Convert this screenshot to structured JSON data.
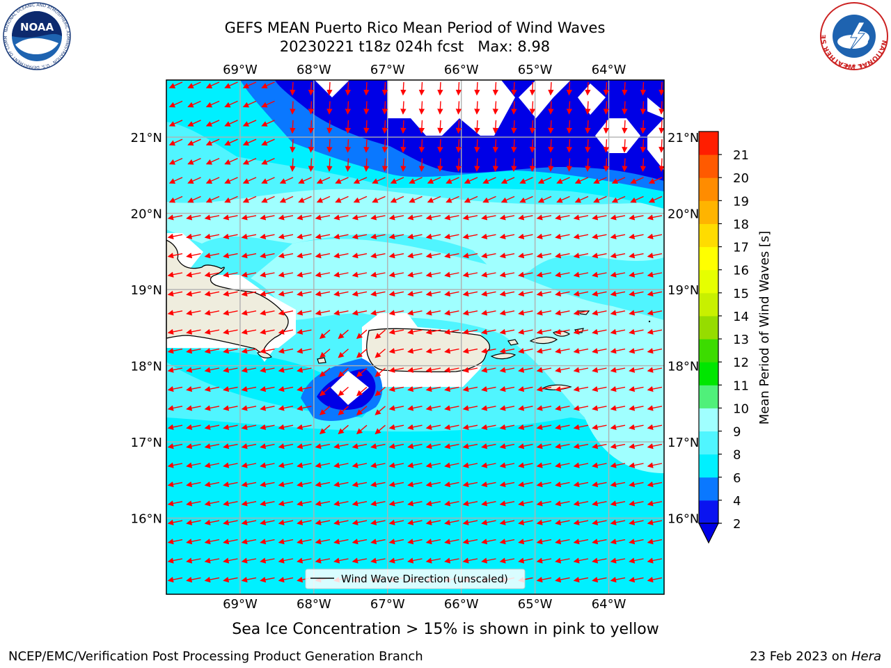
{
  "header": {
    "title_line1": "GEFS MEAN Puerto Rico Mean Period of Wind Waves",
    "title_line2": "20230221 t18z 024h fcst   Max: 8.98"
  },
  "logos": [
    {
      "name": "noaa-logo",
      "text": "NOAA",
      "ring_text": "NATIONAL OCEANIC AND ATMOSPHERIC ADMINISTRATION · U.S. DEPARTMENT OF COMMERCE"
    },
    {
      "name": "nws-logo",
      "ring_text": "NATIONAL WEATHER SERVICE"
    }
  ],
  "map": {
    "lon_ticks": [
      "69°W",
      "68°W",
      "67°W",
      "66°W",
      "65°W",
      "64°W"
    ],
    "lat_ticks": [
      "21°N",
      "20°N",
      "19°N",
      "18°N",
      "17°N",
      "16°N"
    ],
    "lon_range": [
      -70,
      -63.25
    ],
    "lat_range": [
      15,
      21.75
    ],
    "legend_label": "Wind Wave Direction (unscaled)",
    "arrow_color": "#ff0000",
    "land_color": "#efedde"
  },
  "colorbar": {
    "label": "Mean Period of Wind Waves [s]",
    "ticks": [
      "2",
      "4",
      "6",
      "8",
      "9",
      "10",
      "11",
      "12",
      "13",
      "14",
      "15",
      "16",
      "17",
      "18",
      "19",
      "20",
      "21"
    ],
    "colors": [
      "#0a14f0",
      "#0a78ff",
      "#00f0ff",
      "#50f5ff",
      "#a0ffff",
      "#50f07a",
      "#00e600",
      "#3cdc00",
      "#96dc00",
      "#c8f000",
      "#e6ff00",
      "#ffff00",
      "#ffdc00",
      "#ffb400",
      "#ff8c00",
      "#ff5a00",
      "#ff1e00"
    ],
    "under_color": "#0000e6"
  },
  "footer": {
    "caption": "Sea Ice Concentration > 15% is shown in pink to yellow",
    "credit": "NCEP/EMC/Verification Post Processing Product Generation Branch",
    "date": "23 Feb 2023 on ",
    "machine": "Hera"
  }
}
